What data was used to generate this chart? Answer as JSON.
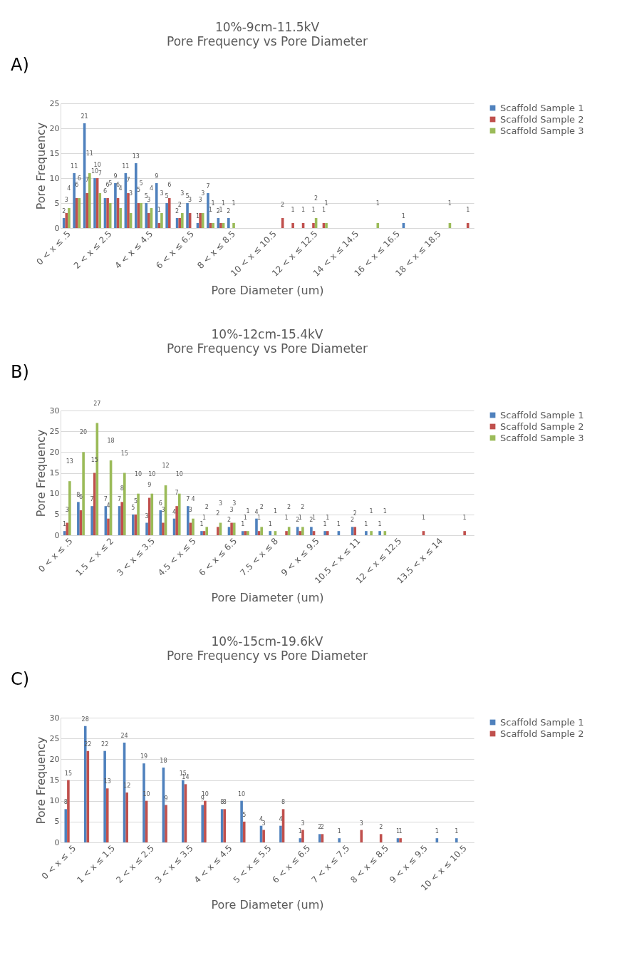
{
  "chart_data": [
    {
      "type": "bar",
      "title": "10%-9cm-11.5kV",
      "subtitle": "Pore Frequency vs Pore Diameter",
      "annotations": [
        "A)"
      ],
      "xlabel": "Pore Diameter (um)",
      "ylabel": "Pore Frequency",
      "categories": [
        "0 < x ≤ .5",
        null,
        null,
        null,
        "2 < x ≤ 2.5",
        null,
        null,
        null,
        "4 < x ≤ 4.5",
        null,
        null,
        null,
        "6 < x ≤ 6.5",
        null,
        null,
        null,
        "8 < x ≤ 8.5",
        null,
        null,
        null,
        "10 < x ≤ 10.5",
        null,
        null,
        null,
        "12 < x ≤ 12.5",
        null,
        null,
        null,
        "14 < x ≤ 14.5",
        null,
        null,
        null,
        "16 < x ≤ 16.5",
        null,
        null,
        null,
        "18 < x ≤ 18.5",
        null,
        null,
        null
      ],
      "series": [
        {
          "name": "Scaffold Sample 1",
          "color": "#4f81bd",
          "values": [
            2,
            11,
            21,
            10,
            6,
            9,
            11,
            13,
            5,
            9,
            5,
            2,
            5,
            1,
            7,
            2,
            2,
            null,
            null,
            null,
            null,
            null,
            null,
            null,
            null,
            null,
            null,
            null,
            null,
            null,
            null,
            null,
            null,
            1,
            null,
            null,
            null,
            null,
            null,
            null
          ]
        },
        {
          "name": "Scaffold Sample 2",
          "color": "#c0504d",
          "values": [
            3,
            6,
            7,
            10,
            6,
            6,
            7,
            5,
            3,
            1,
            6,
            2,
            3,
            3,
            1,
            1,
            null,
            null,
            null,
            null,
            null,
            2,
            1,
            1,
            1,
            1,
            null,
            null,
            null,
            null,
            null,
            null,
            null,
            null,
            null,
            null,
            null,
            null,
            null,
            1
          ]
        },
        {
          "name": "Scaffold Sample 3",
          "color": "#9bbb59",
          "values": [
            4,
            6,
            11,
            7,
            5,
            4,
            3,
            5,
            4,
            3,
            null,
            3,
            null,
            3,
            1,
            1,
            1,
            null,
            null,
            null,
            null,
            null,
            null,
            null,
            2,
            1,
            null,
            null,
            null,
            null,
            1,
            null,
            null,
            null,
            null,
            null,
            null,
            1,
            null,
            null
          ]
        }
      ],
      "ylim": [
        0,
        25
      ],
      "yticks": [
        0,
        5,
        10,
        15,
        20,
        25
      ],
      "grid": "y",
      "legend": "right",
      "data_labels": true
    },
    {
      "type": "bar",
      "title": "10%-12cm-15.4kV",
      "subtitle": "Pore Frequency vs Pore Diameter",
      "annotations": [
        "B)"
      ],
      "xlabel": "Pore Diameter (um)",
      "ylabel": "Pore Frequency",
      "categories": [
        "0 < x ≤ .5",
        null,
        null,
        "1.5 < x ≤ 2",
        null,
        null,
        "3 < x ≤ 3.5",
        null,
        null,
        "4.5 < x ≤ 5",
        null,
        null,
        "6 < x ≤ 6.5",
        null,
        null,
        "7.5 < x ≤ 8",
        null,
        null,
        "9 < x ≤ 9.5",
        null,
        null,
        "10.5 < x ≤ 11",
        null,
        null,
        "12 < x ≤ 12.5",
        null,
        null,
        "13.5 < x ≤ 14",
        null,
        null
      ],
      "series": [
        {
          "name": "Scaffold Sample 1",
          "color": "#4f81bd",
          "values": [
            1,
            8,
            7,
            7,
            7,
            5,
            3,
            6,
            4,
            7,
            1,
            null,
            2,
            1,
            4,
            1,
            null,
            2,
            2,
            1,
            1,
            2,
            1,
            1,
            null,
            null,
            null,
            null,
            null,
            null
          ]
        },
        {
          "name": "Scaffold Sample 2",
          "color": "#c0504d",
          "values": [
            3,
            6,
            15,
            4,
            8,
            5,
            9,
            3,
            7,
            3,
            1,
            2,
            3,
            1,
            1,
            null,
            1,
            1,
            1,
            1,
            null,
            2,
            null,
            null,
            null,
            null,
            1,
            null,
            null,
            1
          ]
        },
        {
          "name": "Scaffold Sample 3",
          "color": "#9bbb59",
          "values": [
            13,
            20,
            27,
            18,
            15,
            10,
            10,
            12,
            10,
            4,
            2,
            3,
            3,
            1,
            2,
            1,
            2,
            2,
            null,
            null,
            null,
            null,
            1,
            1,
            null,
            null,
            null,
            null,
            null,
            null
          ]
        }
      ],
      "ylim": [
        0,
        30
      ],
      "yticks": [
        0,
        5,
        10,
        15,
        20,
        25,
        30
      ],
      "grid": "y",
      "legend": "right",
      "data_labels": true
    },
    {
      "type": "bar",
      "title": "10%-15cm-19.6kV",
      "subtitle": "Pore Frequency vs Pore Diameter",
      "annotations": [
        "C)"
      ],
      "xlabel": "Pore Diameter (um)",
      "ylabel": "Pore Frequency",
      "categories": [
        "0 < x ≤ .5",
        null,
        "1 < x ≤ 1.5",
        null,
        "2 < x ≤ 2.5",
        null,
        "3 < x ≤ 3.5",
        null,
        "4 < x ≤ 4.5",
        null,
        "5 < x ≤ 5.5",
        null,
        "6 < x ≤ 6.5",
        null,
        "7 < x ≤ 7.5",
        null,
        "8 < x ≤ 8.5",
        null,
        "9 < x ≤ 9.5",
        null,
        "10 < x ≤ 10.5"
      ],
      "series": [
        {
          "name": "Scaffold Sample 1",
          "color": "#4f81bd",
          "values": [
            8,
            28,
            22,
            24,
            19,
            18,
            15,
            9,
            8,
            10,
            4,
            4,
            1,
            2,
            1,
            null,
            null,
            1,
            null,
            1,
            1
          ]
        },
        {
          "name": "Scaffold Sample 2",
          "color": "#c0504d",
          "values": [
            15,
            22,
            13,
            12,
            10,
            9,
            14,
            10,
            8,
            5,
            3,
            8,
            3,
            2,
            null,
            3,
            2,
            1,
            null,
            null,
            null
          ]
        }
      ],
      "ylim": [
        0,
        30
      ],
      "yticks": [
        0,
        5,
        10,
        15,
        20,
        25,
        30
      ],
      "grid": "y",
      "legend": "right",
      "data_labels": true
    }
  ]
}
